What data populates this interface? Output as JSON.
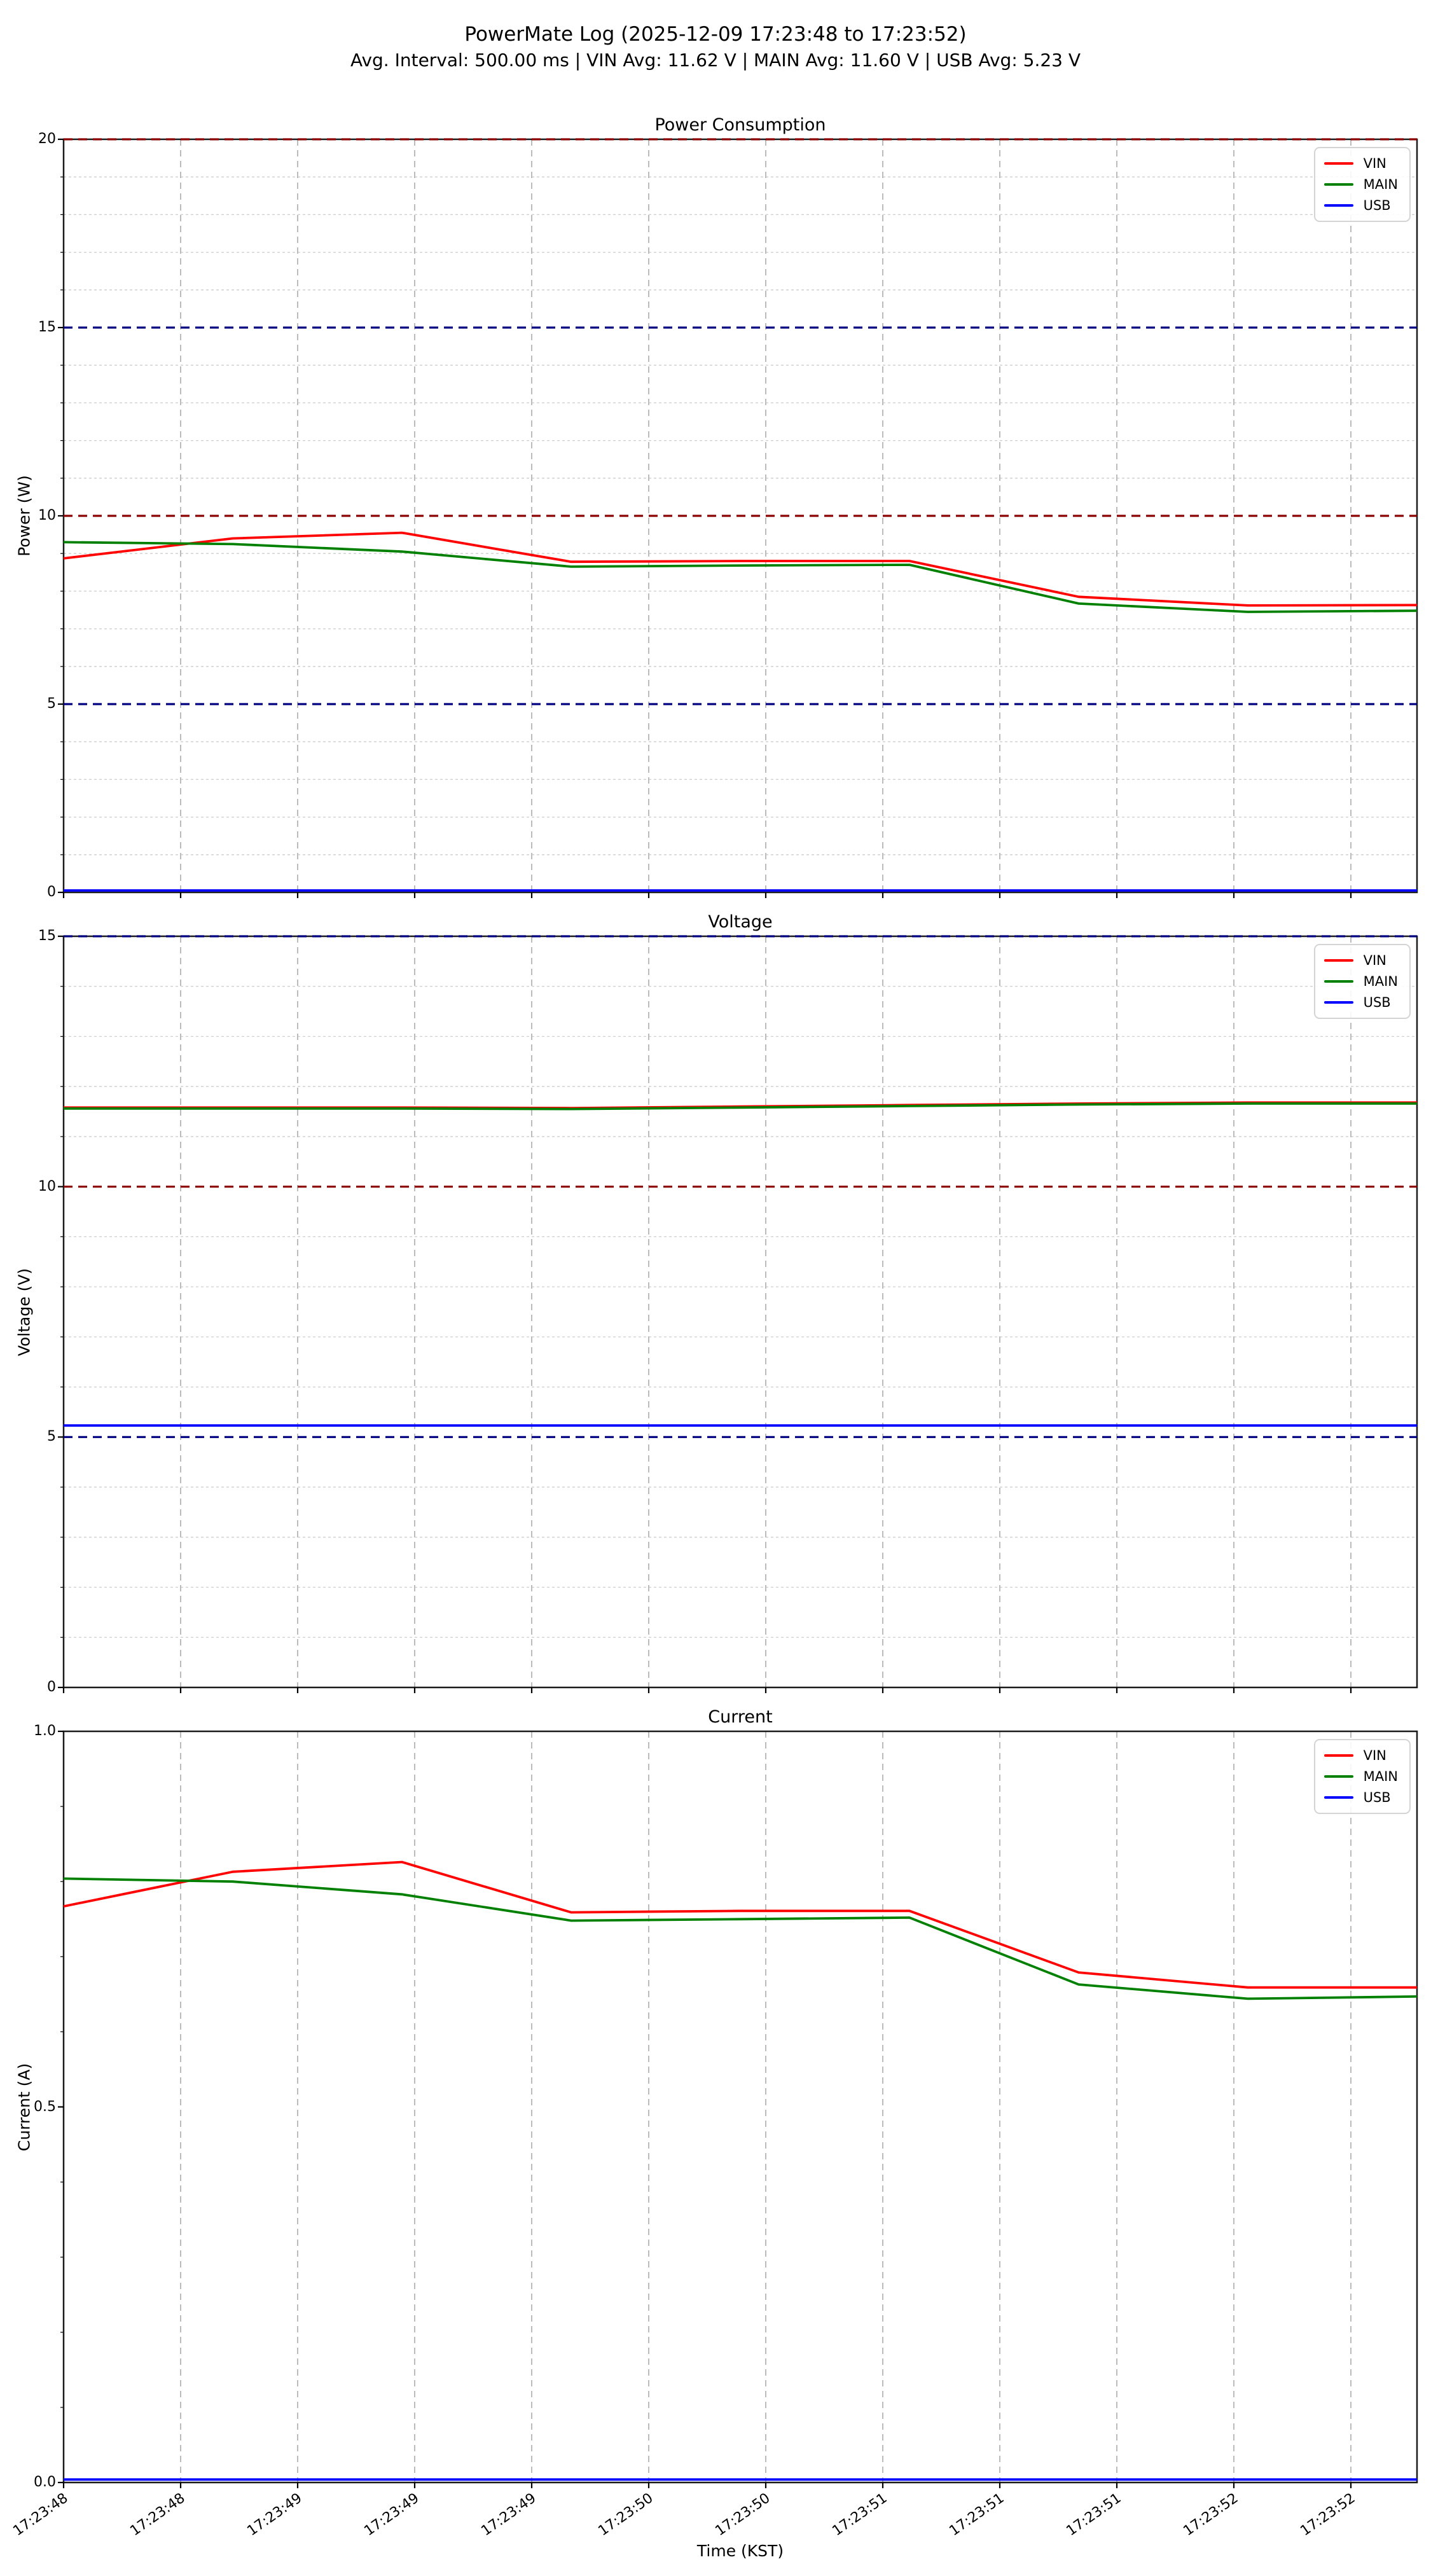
{
  "figure": {
    "title": "PowerMate Log (2025-12-09 17:23:48 to 17:23:52)",
    "subtitle": "Avg. Interval: 500.00 ms | VIN Avg: 11.62 V | MAIN Avg: 11.60 V | USB Avg: 5.23 V"
  },
  "xlabel": "Time (KST)",
  "x_tick_labels": [
    "17:23:48",
    "17:23:48",
    "17:23:49",
    "17:23:49",
    "17:23:49",
    "17:23:50",
    "17:23:50",
    "17:23:51",
    "17:23:51",
    "17:23:51",
    "17:23:52",
    "17:23:52"
  ],
  "legend_labels": [
    "VIN",
    "MAIN",
    "USB"
  ],
  "series_colors": {
    "VIN": "#ff0000",
    "MAIN": "#008000",
    "USB": "#0000ff"
  },
  "threshold_colors": {
    "darkred": "#8b0000",
    "navy": "#000080"
  },
  "grid_colors": {
    "vertical": "#b5b5b5",
    "minor": "#cdcdcd",
    "spine": "#1a1a1a"
  },
  "chart_data": [
    {
      "type": "line",
      "title": "Power Consumption",
      "ylabel": "Power (W)",
      "ylim": [
        0,
        20
      ],
      "yticks": [
        "0",
        "5",
        "10",
        "15",
        "20"
      ],
      "ytick_values": [
        0,
        5,
        10,
        15,
        20
      ],
      "minor_step": 1,
      "minor_grid": true,
      "legend_position": "upper right",
      "thresholds": [
        {
          "value": 20,
          "color": "darkred"
        },
        {
          "value": 15,
          "color": "navy"
        },
        {
          "value": 10,
          "color": "darkred"
        },
        {
          "value": 5,
          "color": "navy"
        }
      ],
      "series": [
        {
          "name": "VIN",
          "values": [
            8.87,
            9.4,
            9.55,
            8.78,
            8.8,
            8.8,
            7.85,
            7.62,
            7.63
          ]
        },
        {
          "name": "MAIN",
          "values": [
            9.3,
            9.25,
            9.05,
            8.65,
            8.68,
            8.7,
            7.67,
            7.45,
            7.48
          ]
        },
        {
          "name": "USB",
          "values": [
            0.05,
            0.05,
            0.05,
            0.05,
            0.05,
            0.05,
            0.05,
            0.05,
            0.05
          ]
        }
      ]
    },
    {
      "type": "line",
      "title": "Voltage",
      "ylabel": "Voltage (V)",
      "ylim": [
        0,
        15
      ],
      "yticks": [
        "0",
        "5",
        "10",
        "15"
      ],
      "ytick_values": [
        0,
        5,
        10,
        15
      ],
      "minor_step": 1,
      "minor_grid": true,
      "legend_position": "upper right",
      "thresholds": [
        {
          "value": 15,
          "color": "navy"
        },
        {
          "value": 10,
          "color": "darkred"
        },
        {
          "value": 5,
          "color": "navy"
        }
      ],
      "series": [
        {
          "name": "VIN",
          "values": [
            11.58,
            11.58,
            11.58,
            11.57,
            11.6,
            11.63,
            11.66,
            11.68,
            11.68
          ]
        },
        {
          "name": "MAIN",
          "values": [
            11.56,
            11.56,
            11.56,
            11.55,
            11.58,
            11.61,
            11.64,
            11.66,
            11.66
          ]
        },
        {
          "name": "USB",
          "values": [
            5.23,
            5.23,
            5.23,
            5.23,
            5.23,
            5.23,
            5.23,
            5.23,
            5.23
          ]
        }
      ]
    },
    {
      "type": "line",
      "title": "Current",
      "ylabel": "Current (A)",
      "ylim": [
        0,
        1
      ],
      "yticks": [
        "0.0",
        "0.5",
        "1.0"
      ],
      "ytick_values": [
        0,
        0.5,
        1
      ],
      "minor_step": 0.1,
      "minor_grid": false,
      "legend_position": "upper right",
      "thresholds": [],
      "series": [
        {
          "name": "VIN",
          "values": [
            0.767,
            0.813,
            0.826,
            0.759,
            0.761,
            0.761,
            0.679,
            0.659,
            0.659
          ]
        },
        {
          "name": "MAIN",
          "values": [
            0.804,
            0.8,
            0.783,
            0.748,
            0.75,
            0.752,
            0.663,
            0.644,
            0.647
          ]
        },
        {
          "name": "USB",
          "values": [
            0.004,
            0.004,
            0.004,
            0.004,
            0.004,
            0.004,
            0.004,
            0.004,
            0.004
          ]
        }
      ]
    }
  ]
}
